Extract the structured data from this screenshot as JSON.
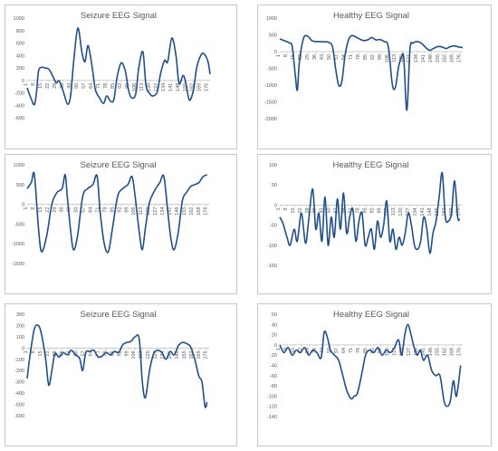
{
  "colors": {
    "line": "#1f4e8c",
    "axis": "#bfbfbf",
    "text": "#595959",
    "border": "#c8c8c8"
  },
  "chart_data": [
    {
      "type": "line",
      "title": "Seizure EEG Signal",
      "grid": false,
      "legend": "none",
      "ylim": [
        -600,
        1000
      ],
      "yticks": [
        -600,
        -400,
        -200,
        0,
        200,
        400,
        600,
        800,
        1000
      ],
      "xtick_labels": [
        "1",
        "8",
        "15",
        "22",
        "29",
        "36",
        "43",
        "50",
        "57",
        "64",
        "71",
        "78",
        "85",
        "92",
        "99",
        "106",
        "113",
        "120",
        "127",
        "134",
        "141",
        "148",
        "155",
        "162",
        "169",
        "176"
      ],
      "series": [
        {
          "x": [
            1,
            5,
            8,
            10,
            12,
            15,
            18,
            22,
            26,
            29,
            32,
            36,
            40,
            43,
            46,
            50,
            54,
            57,
            60,
            64,
            67,
            71,
            75,
            78,
            82,
            85,
            88,
            92,
            96,
            99,
            102,
            106,
            109,
            113,
            116,
            120,
            123,
            127,
            130,
            134,
            137,
            141,
            145,
            148,
            152,
            155,
            158,
            162,
            165,
            169,
            172,
            176,
            178
          ],
          "values": [
            -120,
            -300,
            -390,
            -200,
            150,
            210,
            200,
            180,
            60,
            -40,
            -10,
            -180,
            -380,
            -250,
            300,
            840,
            450,
            300,
            560,
            200,
            -150,
            -280,
            -370,
            -250,
            -340,
            -300,
            50,
            280,
            150,
            -150,
            -280,
            -220,
            200,
            460,
            -80,
            -220,
            -250,
            -180,
            100,
            320,
            300,
            680,
            400,
            -50,
            80,
            -80,
            -320,
            -150,
            200,
            400,
            430,
            300,
            100
          ]
        }
      ]
    },
    {
      "type": "line",
      "title": "Healthy EEG Signal",
      "grid": false,
      "legend": "none",
      "ylim": [
        -2000,
        1000
      ],
      "yticks": [
        -2000,
        -1500,
        -1000,
        -500,
        0,
        500,
        1000
      ],
      "xtick_labels": [
        "1",
        "8",
        "15",
        "22",
        "29",
        "36",
        "43",
        "50",
        "57",
        "64",
        "71",
        "78",
        "85",
        "92",
        "99",
        "106",
        "113",
        "120",
        "127",
        "134",
        "141",
        "148",
        "155",
        "162",
        "169",
        "176"
      ],
      "series": [
        {
          "x": [
            1,
            6,
            10,
            13,
            16,
            18,
            20,
            24,
            28,
            32,
            36,
            40,
            44,
            48,
            52,
            55,
            58,
            61,
            64,
            67,
            70,
            74,
            78,
            82,
            86,
            90,
            94,
            98,
            102,
            106,
            110,
            113,
            116,
            119,
            121,
            124,
            127,
            130,
            134,
            138,
            142,
            146,
            150,
            154,
            158,
            162,
            166,
            170,
            174,
            178
          ],
          "values": [
            380,
            320,
            260,
            150,
            -700,
            -1150,
            -300,
            400,
            460,
            330,
            300,
            300,
            290,
            280,
            150,
            -500,
            -1000,
            -900,
            -150,
            300,
            470,
            450,
            380,
            330,
            350,
            420,
            350,
            360,
            300,
            150,
            -1000,
            -1050,
            -450,
            -150,
            -200,
            -1750,
            80,
            250,
            300,
            250,
            130,
            40,
            100,
            150,
            140,
            90,
            150,
            170,
            140,
            120
          ]
        }
      ]
    },
    {
      "type": "line",
      "title": "Seizure EEG Signal",
      "grid": false,
      "legend": "none",
      "ylim": [
        -1500,
        1000
      ],
      "yticks": [
        -1500,
        -1000,
        -500,
        0,
        500,
        1000
      ],
      "xtick_labels": [
        "1",
        "8",
        "15",
        "22",
        "29",
        "36",
        "43",
        "50",
        "57",
        "64",
        "71",
        "78",
        "85",
        "92",
        "99",
        "106",
        "113",
        "120",
        "127",
        "134",
        "141",
        "148",
        "155",
        "162",
        "169",
        "176"
      ],
      "series": [
        {
          "x": [
            1,
            5,
            8,
            12,
            15,
            20,
            25,
            30,
            35,
            38,
            40,
            43,
            46,
            50,
            55,
            60,
            65,
            69,
            72,
            76,
            80,
            84,
            89,
            94,
            99,
            103,
            106,
            110,
            113,
            116,
            120,
            125,
            130,
            134,
            138,
            141,
            144,
            148,
            152,
            156,
            160,
            164,
            168,
            172,
            176
          ],
          "values": [
            400,
            550,
            750,
            -600,
            -1200,
            -800,
            0,
            300,
            400,
            750,
            200,
            -600,
            -1150,
            -800,
            200,
            400,
            500,
            720,
            -200,
            -1000,
            -1200,
            -600,
            200,
            400,
            500,
            700,
            200,
            -700,
            -1150,
            -600,
            50,
            350,
            550,
            700,
            -250,
            -900,
            -1150,
            -700,
            100,
            300,
            450,
            500,
            550,
            700,
            750
          ]
        }
      ]
    },
    {
      "type": "line",
      "title": "Healthy EEG Signal",
      "grid": false,
      "legend": "none",
      "ylim": [
        -150,
        100
      ],
      "yticks": [
        -150,
        -100,
        -50,
        0,
        50,
        100
      ],
      "xtick_labels": [
        "1",
        "8",
        "15",
        "22",
        "29",
        "36",
        "43",
        "50",
        "57",
        "64",
        "71",
        "78",
        "85",
        "92",
        "99",
        "106",
        "113",
        "120",
        "127",
        "134",
        "141",
        "148",
        "155",
        "162",
        "169",
        "176"
      ],
      "series": [
        {
          "x": [
            1,
            4,
            8,
            11,
            15,
            18,
            22,
            26,
            29,
            33,
            36,
            39,
            42,
            45,
            48,
            51,
            54,
            57,
            60,
            63,
            66,
            69,
            72,
            75,
            78,
            81,
            84,
            87,
            90,
            93,
            96,
            99,
            102,
            105,
            108,
            111,
            114,
            117,
            120,
            123,
            126,
            129,
            132,
            135,
            138,
            141,
            144,
            147,
            150,
            153,
            156,
            159,
            162,
            165,
            168,
            171,
            174,
            176
          ],
          "values": [
            -30,
            -45,
            -80,
            -100,
            -60,
            -90,
            -20,
            -95,
            -40,
            40,
            -60,
            -20,
            -90,
            20,
            -100,
            -30,
            -80,
            15,
            -60,
            30,
            -70,
            -30,
            -10,
            -90,
            -40,
            -20,
            -100,
            -80,
            -60,
            -110,
            -40,
            -80,
            -50,
            10,
            -90,
            -60,
            -110,
            -80,
            -100,
            -70,
            -20,
            -50,
            -100,
            -110,
            -90,
            -30,
            -60,
            -120,
            -70,
            -40,
            20,
            80,
            -30,
            -40,
            -20,
            60,
            -30,
            -35
          ]
        }
      ]
    },
    {
      "type": "line",
      "title": "Seizure EEG Signal",
      "grid": false,
      "legend": "none",
      "ylim": [
        -600,
        300
      ],
      "yticks": [
        -600,
        -500,
        -400,
        -300,
        -200,
        -100,
        0,
        100,
        200,
        300
      ],
      "xtick_labels": [
        "1",
        "8",
        "15",
        "22",
        "29",
        "36",
        "43",
        "50",
        "57",
        "64",
        "71",
        "78",
        "85",
        "92",
        "99",
        "106",
        "113",
        "120",
        "127",
        "134",
        "141",
        "148",
        "155",
        "162",
        "169",
        "176"
      ],
      "series": [
        {
          "x": [
            1,
            4,
            8,
            12,
            15,
            19,
            22,
            25,
            28,
            32,
            36,
            40,
            44,
            48,
            52,
            55,
            58,
            62,
            66,
            70,
            74,
            78,
            82,
            86,
            90,
            94,
            98,
            102,
            106,
            110,
            113,
            116,
            120,
            124,
            128,
            132,
            136,
            140,
            144,
            148,
            152,
            156,
            160,
            164,
            168,
            171,
            174,
            176
          ],
          "values": [
            -270,
            -50,
            170,
            200,
            120,
            -100,
            -330,
            -200,
            -50,
            -80,
            -40,
            -60,
            -20,
            -60,
            -90,
            -200,
            -40,
            -30,
            -20,
            -80,
            -70,
            -40,
            -60,
            -30,
            -40,
            30,
            50,
            60,
            100,
            80,
            -300,
            -440,
            -200,
            -50,
            -20,
            -40,
            -100,
            -30,
            -60,
            20,
            50,
            40,
            10,
            -100,
            -250,
            -300,
            -520,
            -480
          ]
        }
      ]
    },
    {
      "type": "line",
      "title": "Healthy EEG Signal",
      "grid": false,
      "legend": "none",
      "ylim": [
        -140,
        60
      ],
      "yticks": [
        -140,
        -120,
        -100,
        -80,
        -60,
        -40,
        -20,
        0,
        20,
        40,
        60
      ],
      "xtick_labels": [
        "1",
        "8",
        "15",
        "22",
        "29",
        "36",
        "43",
        "50",
        "57",
        "64",
        "71",
        "78",
        "85",
        "92",
        "99",
        "106",
        "113",
        "120",
        "127",
        "134",
        "141",
        "148",
        "155",
        "162",
        "169",
        "176"
      ],
      "series": [
        {
          "x": [
            1,
            5,
            9,
            13,
            17,
            21,
            25,
            29,
            33,
            37,
            41,
            44,
            47,
            50,
            54,
            58,
            62,
            66,
            70,
            73,
            76,
            80,
            84,
            88,
            92,
            96,
            100,
            104,
            108,
            112,
            116,
            119,
            122,
            125,
            128,
            131,
            134,
            137,
            140,
            144,
            148,
            152,
            156,
            160,
            163,
            166,
            169,
            172,
            176
          ],
          "values": [
            0,
            -15,
            -5,
            -20,
            -10,
            -15,
            -5,
            -20,
            -10,
            -15,
            -25,
            25,
            15,
            -10,
            -20,
            -30,
            -60,
            -90,
            -105,
            -100,
            -95,
            -60,
            -20,
            -10,
            -15,
            -5,
            -20,
            -10,
            -15,
            -5,
            10,
            -20,
            20,
            40,
            20,
            -5,
            -20,
            -10,
            -30,
            -20,
            -50,
            -60,
            -60,
            -110,
            -120,
            -110,
            -70,
            -100,
            -40
          ]
        }
      ]
    }
  ]
}
